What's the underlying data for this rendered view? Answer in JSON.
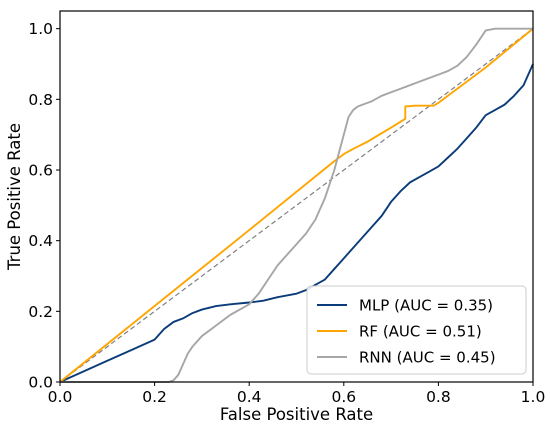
{
  "chart_data": {
    "type": "line",
    "title": "",
    "xlabel": "False Positive Rate",
    "ylabel": "True Positive Rate",
    "xlim": [
      0.0,
      1.0
    ],
    "ylim": [
      0.0,
      1.05
    ],
    "xticks": [
      "0.0",
      "0.2",
      "0.4",
      "0.6",
      "0.8",
      "1.0"
    ],
    "yticks": [
      "0.0",
      "0.2",
      "0.4",
      "0.6",
      "0.8",
      "1.0"
    ],
    "grid": false,
    "legend_position": "lower-right",
    "baseline": {
      "x": [
        0,
        1
      ],
      "y": [
        0,
        1
      ],
      "color": "#808080",
      "style": "dashed"
    },
    "series": [
      {
        "name": "MLP (AUC = 0.35)",
        "color": "#0b3c7a",
        "x": [
          0.0,
          0.05,
          0.1,
          0.15,
          0.2,
          0.22,
          0.24,
          0.26,
          0.28,
          0.3,
          0.33,
          0.36,
          0.4,
          0.43,
          0.46,
          0.5,
          0.52,
          0.54,
          0.56,
          0.58,
          0.6,
          0.62,
          0.64,
          0.66,
          0.68,
          0.7,
          0.72,
          0.74,
          0.76,
          0.78,
          0.8,
          0.82,
          0.84,
          0.86,
          0.88,
          0.9,
          0.92,
          0.94,
          0.96,
          0.98,
          0.99,
          1.0
        ],
        "y": [
          0.0,
          0.03,
          0.06,
          0.09,
          0.12,
          0.15,
          0.17,
          0.18,
          0.195,
          0.205,
          0.215,
          0.22,
          0.225,
          0.23,
          0.24,
          0.25,
          0.26,
          0.275,
          0.29,
          0.32,
          0.35,
          0.38,
          0.41,
          0.44,
          0.47,
          0.51,
          0.54,
          0.565,
          0.58,
          0.595,
          0.61,
          0.635,
          0.66,
          0.69,
          0.72,
          0.755,
          0.77,
          0.785,
          0.81,
          0.84,
          0.87,
          0.9
        ]
      },
      {
        "name": "RF (AUC = 0.51)",
        "color": "#ffa500",
        "x": [
          0.0,
          0.2,
          0.4,
          0.58,
          0.6,
          0.62,
          0.65,
          0.7,
          0.73,
          0.73,
          0.75,
          0.79,
          0.8,
          0.9,
          1.0
        ],
        "y": [
          0.0,
          0.215,
          0.43,
          0.625,
          0.645,
          0.66,
          0.68,
          0.72,
          0.745,
          0.78,
          0.782,
          0.782,
          0.79,
          0.89,
          1.0
        ]
      },
      {
        "name": "RNN (AUC = 0.45)",
        "color": "#a6a6a6",
        "x": [
          0.0,
          0.22,
          0.23,
          0.24,
          0.25,
          0.26,
          0.27,
          0.28,
          0.3,
          0.33,
          0.36,
          0.4,
          0.42,
          0.44,
          0.46,
          0.48,
          0.5,
          0.52,
          0.54,
          0.56,
          0.58,
          0.6,
          0.61,
          0.62,
          0.63,
          0.64,
          0.66,
          0.68,
          0.7,
          0.72,
          0.74,
          0.76,
          0.78,
          0.8,
          0.82,
          0.84,
          0.86,
          0.88,
          0.9,
          0.92,
          0.94,
          1.0
        ],
        "y": [
          0.0,
          0.0,
          0.0,
          0.005,
          0.02,
          0.05,
          0.08,
          0.1,
          0.13,
          0.16,
          0.19,
          0.22,
          0.25,
          0.29,
          0.33,
          0.36,
          0.39,
          0.42,
          0.46,
          0.52,
          0.6,
          0.7,
          0.75,
          0.77,
          0.78,
          0.785,
          0.795,
          0.81,
          0.82,
          0.83,
          0.84,
          0.85,
          0.86,
          0.87,
          0.88,
          0.895,
          0.92,
          0.955,
          0.995,
          1.0,
          1.0,
          1.0
        ]
      }
    ]
  }
}
